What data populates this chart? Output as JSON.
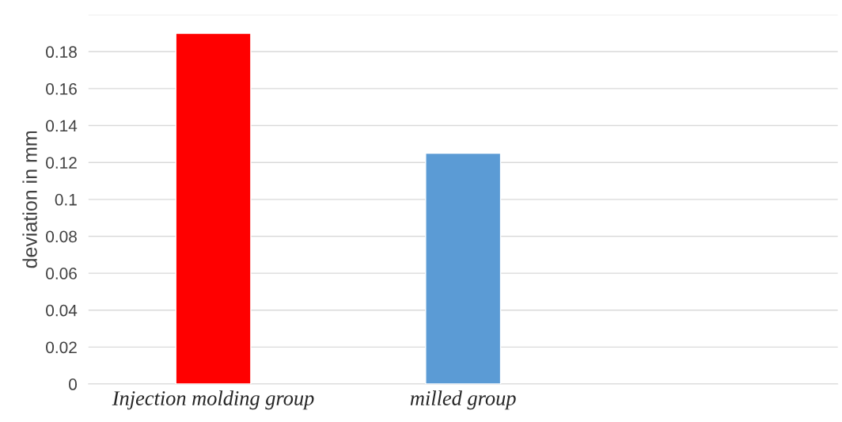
{
  "chart_data": {
    "type": "bar",
    "ylabel": "deviation in mm",
    "categories": [
      "Injection molding group",
      "milled group",
      null
    ],
    "values": [
      0.19,
      0.125,
      null
    ],
    "colors": [
      "#ff0000",
      "#5b9bd5",
      null
    ],
    "ylim": [
      0,
      0.2
    ],
    "yticks": [
      0,
      0.02,
      0.04,
      0.06,
      0.08,
      0.1,
      0.12,
      0.14,
      0.16,
      0.18,
      {
        "value": 0.2,
        "label": null
      }
    ],
    "grid": "y",
    "legend": false
  }
}
